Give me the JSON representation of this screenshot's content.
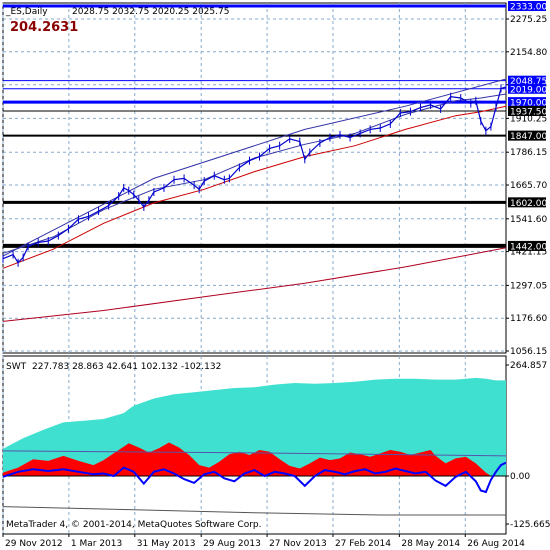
{
  "header": {
    "symbol": "_ES,Daily",
    "ohlc": "2028.75 2032.75 2020.25 2025.75",
    "big_value": "204.2631"
  },
  "footer": {
    "copyright": "MetaTrader 4, © 2001-2014, MetaQuotes Software Corp."
  },
  "colors": {
    "price": "#0000cd",
    "ma_fast": "#3333aa",
    "ma_mid": "#cc0000",
    "ma_slow": "#b00020",
    "hline_blue": "#0000ff",
    "hline_black": "#000000",
    "swt_area": "#40e0d0",
    "swt_red": "#ff0000",
    "swt_line": "#0000ff",
    "grid": "#87aacc"
  },
  "chart_data": [
    {
      "type": "line",
      "panel": "price",
      "yticks": [
        "2275.25",
        "2154.80",
        "2033.85",
        "1910.25",
        "1786.15",
        "1665.70",
        "1541.60",
        "1421.15",
        "1297.05",
        "1176.60",
        "1056.15"
      ],
      "ylim": [
        1056.15,
        2336
      ],
      "xticks": [
        "29 Nov 2012",
        "1 Mar 2013",
        "31 May 2013",
        "29 Aug 2013",
        "27 Nov 2013",
        "27 Feb 2014",
        "28 May 2014",
        "26 Aug 2014"
      ],
      "xrange": [
        0,
        100
      ],
      "xtick_pos": [
        0,
        13.1,
        26.2,
        39.4,
        52.5,
        65.6,
        78.8,
        91.9
      ],
      "hlines": [
        {
          "value": 2333.0,
          "label": "2333.00",
          "color": "blue",
          "width": 3
        },
        {
          "value": 2048.75,
          "label": "2048.75",
          "color": "blue",
          "width": 1
        },
        {
          "value": 2019.0,
          "label": "2019.00",
          "color": "blue",
          "width": 1
        },
        {
          "value": 1970.0,
          "label": "1970.00",
          "color": "blue",
          "width": 3
        },
        {
          "value": 1937.5,
          "label": "1937.50",
          "color": "black",
          "width": 1
        },
        {
          "value": 1847.0,
          "label": "1847.00",
          "color": "black",
          "width": 2
        },
        {
          "value": 1602.0,
          "label": "1602.00",
          "color": "black",
          "width": 3
        },
        {
          "value": 1442.0,
          "label": "1442.00",
          "color": "black",
          "width": 4
        }
      ],
      "price": [
        [
          0,
          1395
        ],
        [
          2,
          1410
        ],
        [
          3,
          1380
        ],
        [
          4,
          1400
        ],
        [
          5,
          1440
        ],
        [
          7,
          1455
        ],
        [
          9,
          1460
        ],
        [
          11,
          1480
        ],
        [
          13,
          1505
        ],
        [
          15,
          1540
        ],
        [
          17,
          1550
        ],
        [
          19,
          1570
        ],
        [
          21,
          1590
        ],
        [
          23,
          1625
        ],
        [
          24,
          1655
        ],
        [
          25,
          1645
        ],
        [
          26,
          1630
        ],
        [
          27,
          1610
        ],
        [
          28,
          1585
        ],
        [
          29,
          1610
        ],
        [
          30,
          1640
        ],
        [
          32,
          1655
        ],
        [
          34,
          1685
        ],
        [
          36,
          1690
        ],
        [
          38,
          1665
        ],
        [
          39,
          1650
        ],
        [
          40,
          1680
        ],
        [
          42,
          1700
        ],
        [
          44,
          1685
        ],
        [
          45,
          1690
        ],
        [
          47,
          1730
        ],
        [
          49,
          1755
        ],
        [
          51,
          1770
        ],
        [
          53,
          1800
        ],
        [
          55,
          1810
        ],
        [
          57,
          1835
        ],
        [
          59,
          1825
        ],
        [
          60,
          1760
        ],
        [
          61,
          1785
        ],
        [
          63,
          1820
        ],
        [
          65,
          1840
        ],
        [
          67,
          1850
        ],
        [
          69,
          1840
        ],
        [
          71,
          1855
        ],
        [
          73,
          1870
        ],
        [
          75,
          1875
        ],
        [
          77,
          1890
        ],
        [
          79,
          1930
        ],
        [
          81,
          1935
        ],
        [
          83,
          1950
        ],
        [
          85,
          1960
        ],
        [
          87,
          1945
        ],
        [
          89,
          1990
        ],
        [
          91,
          1985
        ],
        [
          93,
          1965
        ],
        [
          94,
          1975
        ],
        [
          95,
          1900
        ],
        [
          96,
          1865
        ],
        [
          97,
          1880
        ],
        [
          98,
          1950
        ],
        [
          99,
          2020
        ],
        [
          100,
          2026
        ]
      ],
      "ma_fast": [
        [
          0,
          1415
        ],
        [
          10,
          1475
        ],
        [
          20,
          1575
        ],
        [
          30,
          1650
        ],
        [
          40,
          1685
        ],
        [
          50,
          1765
        ],
        [
          60,
          1815
        ],
        [
          70,
          1855
        ],
        [
          80,
          1925
        ],
        [
          90,
          1975
        ],
        [
          95,
          1985
        ],
        [
          100,
          2000
        ]
      ],
      "ma_mid": [
        [
          0,
          1360
        ],
        [
          10,
          1430
        ],
        [
          20,
          1525
        ],
        [
          30,
          1600
        ],
        [
          40,
          1650
        ],
        [
          50,
          1715
        ],
        [
          60,
          1770
        ],
        [
          70,
          1810
        ],
        [
          80,
          1870
        ],
        [
          90,
          1920
        ],
        [
          95,
          1935
        ],
        [
          100,
          1955
        ]
      ],
      "ma_slow": [
        [
          0,
          1165
        ],
        [
          20,
          1205
        ],
        [
          40,
          1255
        ],
        [
          60,
          1305
        ],
        [
          80,
          1365
        ],
        [
          100,
          1435
        ]
      ],
      "channel_upper": [
        [
          0,
          1405
        ],
        [
          30,
          1690
        ],
        [
          60,
          1870
        ],
        [
          80,
          1955
        ],
        [
          100,
          2055
        ]
      ]
    },
    {
      "type": "area",
      "panel": "indicator",
      "name": "SWT",
      "readout": "227.783 28.863 42.641 102.132 -102.132",
      "yticks": [
        "264.857",
        "0.00",
        "-125.665"
      ],
      "ylim": [
        -125.665,
        264.857
      ],
      "swt_area": [
        [
          0,
          65
        ],
        [
          4,
          90
        ],
        [
          8,
          110
        ],
        [
          12,
          128
        ],
        [
          16,
          132
        ],
        [
          20,
          136
        ],
        [
          24,
          150
        ],
        [
          26,
          168
        ],
        [
          30,
          185
        ],
        [
          34,
          195
        ],
        [
          38,
          200
        ],
        [
          42,
          205
        ],
        [
          46,
          210
        ],
        [
          50,
          212
        ],
        [
          54,
          218
        ],
        [
          58,
          222
        ],
        [
          62,
          220
        ],
        [
          66,
          222
        ],
        [
          70,
          225
        ],
        [
          74,
          230
        ],
        [
          78,
          232
        ],
        [
          82,
          232
        ],
        [
          86,
          230
        ],
        [
          90,
          230
        ],
        [
          94,
          234
        ],
        [
          96,
          232
        ],
        [
          98,
          228
        ],
        [
          100,
          228
        ]
      ],
      "swt_red": [
        [
          0,
          8
        ],
        [
          3,
          20
        ],
        [
          6,
          40
        ],
        [
          9,
          36
        ],
        [
          12,
          48
        ],
        [
          15,
          36
        ],
        [
          18,
          26
        ],
        [
          20,
          38
        ],
        [
          23,
          62
        ],
        [
          25,
          78
        ],
        [
          27,
          68
        ],
        [
          29,
          56
        ],
        [
          31,
          66
        ],
        [
          33,
          80
        ],
        [
          35,
          68
        ],
        [
          37,
          50
        ],
        [
          39,
          26
        ],
        [
          41,
          20
        ],
        [
          43,
          34
        ],
        [
          45,
          52
        ],
        [
          47,
          58
        ],
        [
          49,
          50
        ],
        [
          51,
          62
        ],
        [
          53,
          58
        ],
        [
          55,
          40
        ],
        [
          57,
          24
        ],
        [
          59,
          18
        ],
        [
          61,
          30
        ],
        [
          63,
          44
        ],
        [
          65,
          38
        ],
        [
          67,
          42
        ],
        [
          69,
          56
        ],
        [
          71,
          52
        ],
        [
          73,
          46
        ],
        [
          75,
          54
        ],
        [
          77,
          62
        ],
        [
          79,
          58
        ],
        [
          81,
          50
        ],
        [
          83,
          56
        ],
        [
          85,
          62
        ],
        [
          86,
          48
        ],
        [
          88,
          30
        ],
        [
          90,
          42
        ],
        [
          92,
          46
        ],
        [
          94,
          30
        ],
        [
          96,
          8
        ],
        [
          97,
          0
        ],
        [
          99,
          0
        ],
        [
          100,
          0
        ]
      ],
      "swt_line": [
        [
          0,
          -2
        ],
        [
          3,
          10
        ],
        [
          6,
          16
        ],
        [
          9,
          12
        ],
        [
          12,
          16
        ],
        [
          15,
          10
        ],
        [
          18,
          4
        ],
        [
          20,
          6
        ],
        [
          22,
          0
        ],
        [
          24,
          20
        ],
        [
          26,
          10
        ],
        [
          28,
          -20
        ],
        [
          30,
          10
        ],
        [
          32,
          16
        ],
        [
          34,
          6
        ],
        [
          36,
          -8
        ],
        [
          38,
          -18
        ],
        [
          40,
          4
        ],
        [
          42,
          10
        ],
        [
          44,
          -6
        ],
        [
          46,
          -14
        ],
        [
          48,
          6
        ],
        [
          50,
          14
        ],
        [
          52,
          0
        ],
        [
          54,
          10
        ],
        [
          56,
          6
        ],
        [
          58,
          0
        ],
        [
          60,
          -26
        ],
        [
          62,
          0
        ],
        [
          64,
          14
        ],
        [
          66,
          10
        ],
        [
          68,
          4
        ],
        [
          70,
          12
        ],
        [
          72,
          16
        ],
        [
          74,
          6
        ],
        [
          76,
          10
        ],
        [
          78,
          18
        ],
        [
          80,
          12
        ],
        [
          82,
          6
        ],
        [
          84,
          10
        ],
        [
          86,
          -12
        ],
        [
          88,
          -26
        ],
        [
          90,
          -2
        ],
        [
          92,
          10
        ],
        [
          94,
          -14
        ],
        [
          95,
          -38
        ],
        [
          96,
          -42
        ],
        [
          97,
          -10
        ],
        [
          98,
          10
        ],
        [
          99,
          26
        ],
        [
          100,
          32
        ]
      ],
      "line_mid": [
        [
          0,
          60
        ],
        [
          50,
          55
        ],
        [
          100,
          48
        ]
      ],
      "line_low": [
        [
          0,
          -80
        ],
        [
          25,
          -88
        ],
        [
          50,
          -96
        ],
        [
          75,
          -102
        ],
        [
          100,
          -102
        ]
      ]
    }
  ]
}
